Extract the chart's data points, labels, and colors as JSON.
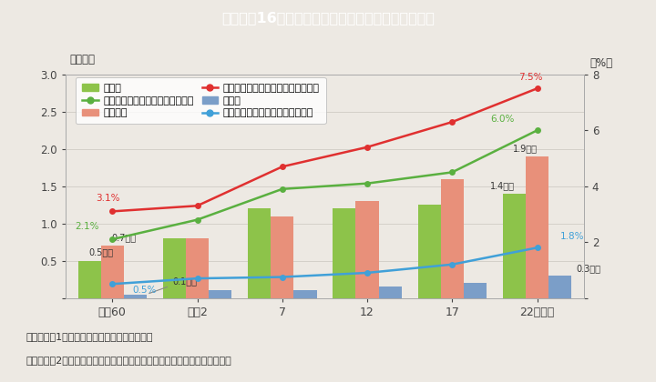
{
  "title": "Ｉ－特－16図　女性の保安職の人数及び割合の推移",
  "title_bg": "#3ab4c8",
  "bg_color": "#ede9e3",
  "plot_bg": "#ede9e3",
  "categories": [
    "昭和60",
    "平成2",
    "7",
    "12",
    "17",
    "22（年）"
  ],
  "x_positions": [
    0,
    1,
    2,
    3,
    4,
    5
  ],
  "bar_jietai": [
    0.5,
    0.8,
    1.2,
    1.2,
    1.25,
    1.4
  ],
  "bar_keisatsu": [
    0.7,
    0.8,
    1.1,
    1.3,
    1.6,
    1.9
  ],
  "bar_shobo": [
    0.05,
    0.1,
    0.1,
    0.15,
    0.2,
    0.3
  ],
  "line_jietai_pct": [
    2.1,
    2.8,
    3.9,
    4.1,
    4.5,
    6.0
  ],
  "line_keisatsu_pct": [
    3.1,
    3.3,
    4.7,
    5.4,
    6.3,
    7.5
  ],
  "line_shobo_pct": [
    0.5,
    0.7,
    0.75,
    0.9,
    1.2,
    1.8
  ],
  "bar_jietai_color": "#8dc34a",
  "bar_keisatsu_color": "#e8907a",
  "bar_shobo_color": "#7b9ec8",
  "line_jietai_color": "#5ab040",
  "line_keisatsu_color": "#e03030",
  "line_shobo_color": "#40a0d8",
  "ylim_left": [
    0,
    3
  ],
  "ylim_right": [
    0,
    8
  ],
  "yticks_left": [
    0,
    0.5,
    1.0,
    1.5,
    2.0,
    2.5,
    3.0
  ],
  "yticks_right": [
    0,
    2,
    4,
    6,
    8
  ],
  "ylabel_left": "（万人）",
  "ylabel_right": "（%）",
  "footnote1": "（備考）　1．総務省「国勢調査」より作成。",
  "footnote2": "　　　　　2．「警察官等」は，警察官，海上保安官，鉄道公安員の合計。"
}
